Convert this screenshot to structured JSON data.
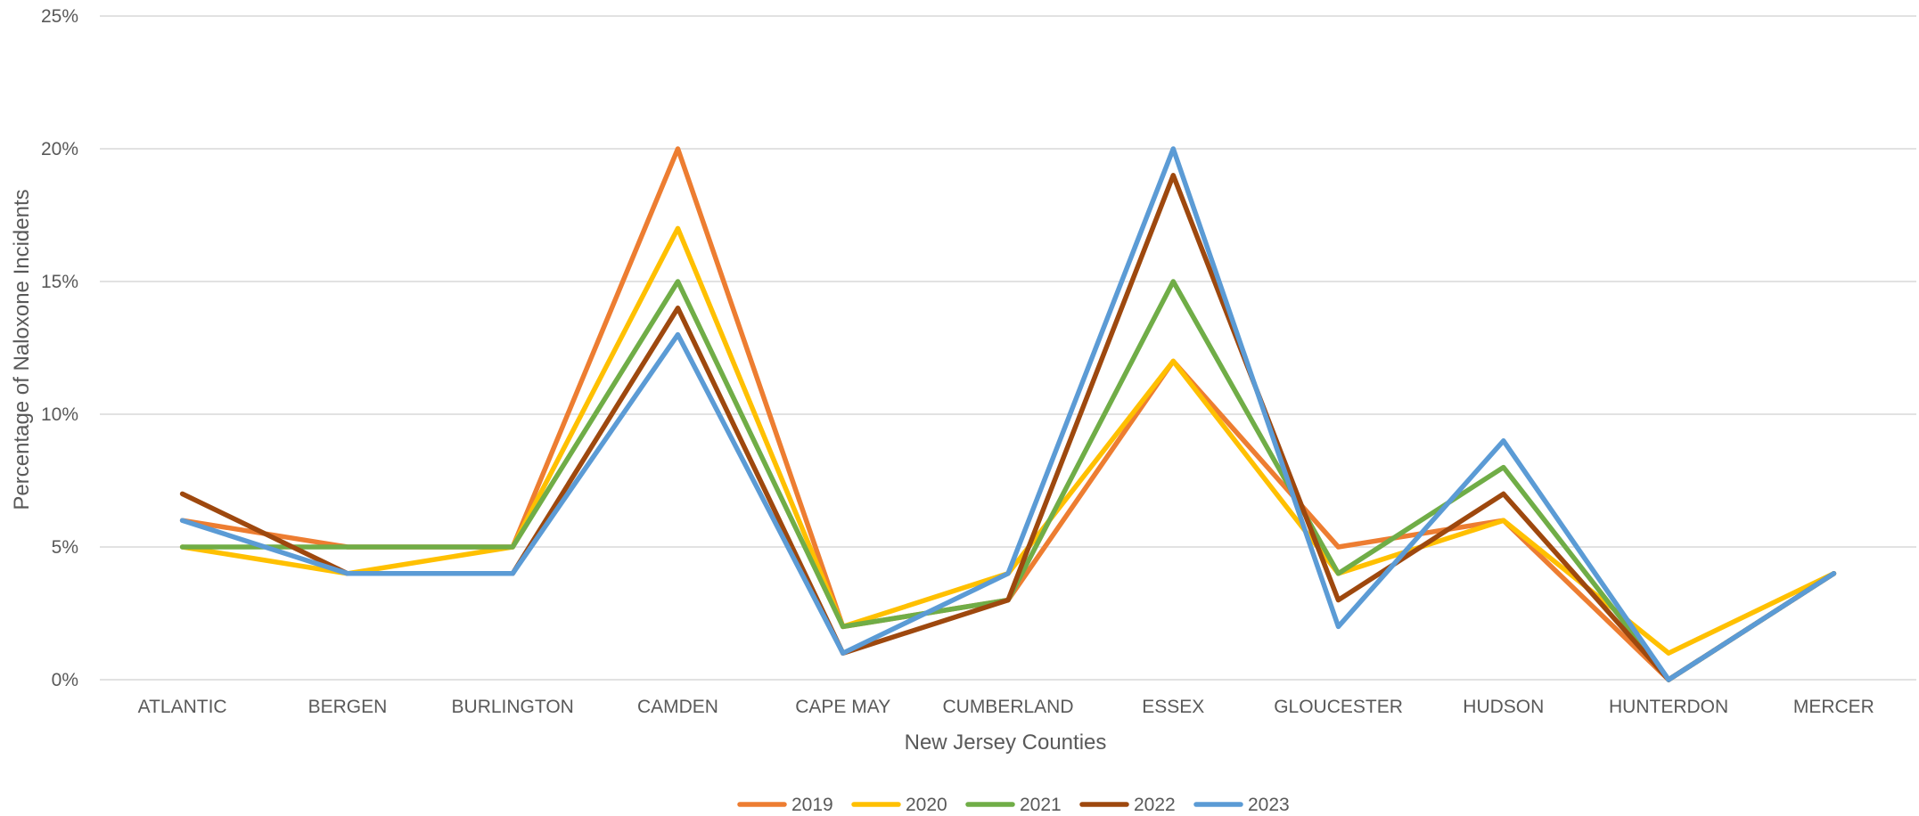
{
  "chart_data": {
    "type": "line",
    "title": "",
    "xlabel": "New Jersey Counties",
    "ylabel": "Percentage of  Naloxone Incidents",
    "categories": [
      "ATLANTIC",
      "BERGEN",
      "BURLINGTON",
      "CAMDEN",
      "CAPE MAY",
      "CUMBERLAND",
      "ESSEX",
      "GLOUCESTER",
      "HUDSON",
      "HUNTERDON",
      "MERCER"
    ],
    "ylim": [
      0,
      25
    ],
    "yticks": [
      "0%",
      "5%",
      "10%",
      "15%",
      "20%",
      "25%"
    ],
    "grid": true,
    "legend_position": "bottom",
    "series": [
      {
        "name": "2019",
        "color": "#ED7D31",
        "values": [
          6,
          5,
          5,
          20,
          2,
          3,
          12,
          5,
          6,
          0,
          4
        ]
      },
      {
        "name": "2020",
        "color": "#FFC000",
        "values": [
          5,
          4,
          5,
          17,
          2,
          4,
          12,
          4,
          6,
          1,
          4
        ]
      },
      {
        "name": "2021",
        "color": "#70AD47",
        "values": [
          5,
          5,
          5,
          15,
          2,
          3,
          15,
          4,
          8,
          0,
          4
        ]
      },
      {
        "name": "2022",
        "color": "#9E480E",
        "values": [
          7,
          4,
          4,
          14,
          1,
          3,
          19,
          3,
          7,
          0,
          4
        ]
      },
      {
        "name": "2023",
        "color": "#5B9BD5",
        "values": [
          6,
          4,
          4,
          13,
          1,
          4,
          20,
          2,
          9,
          0,
          4
        ]
      }
    ]
  }
}
